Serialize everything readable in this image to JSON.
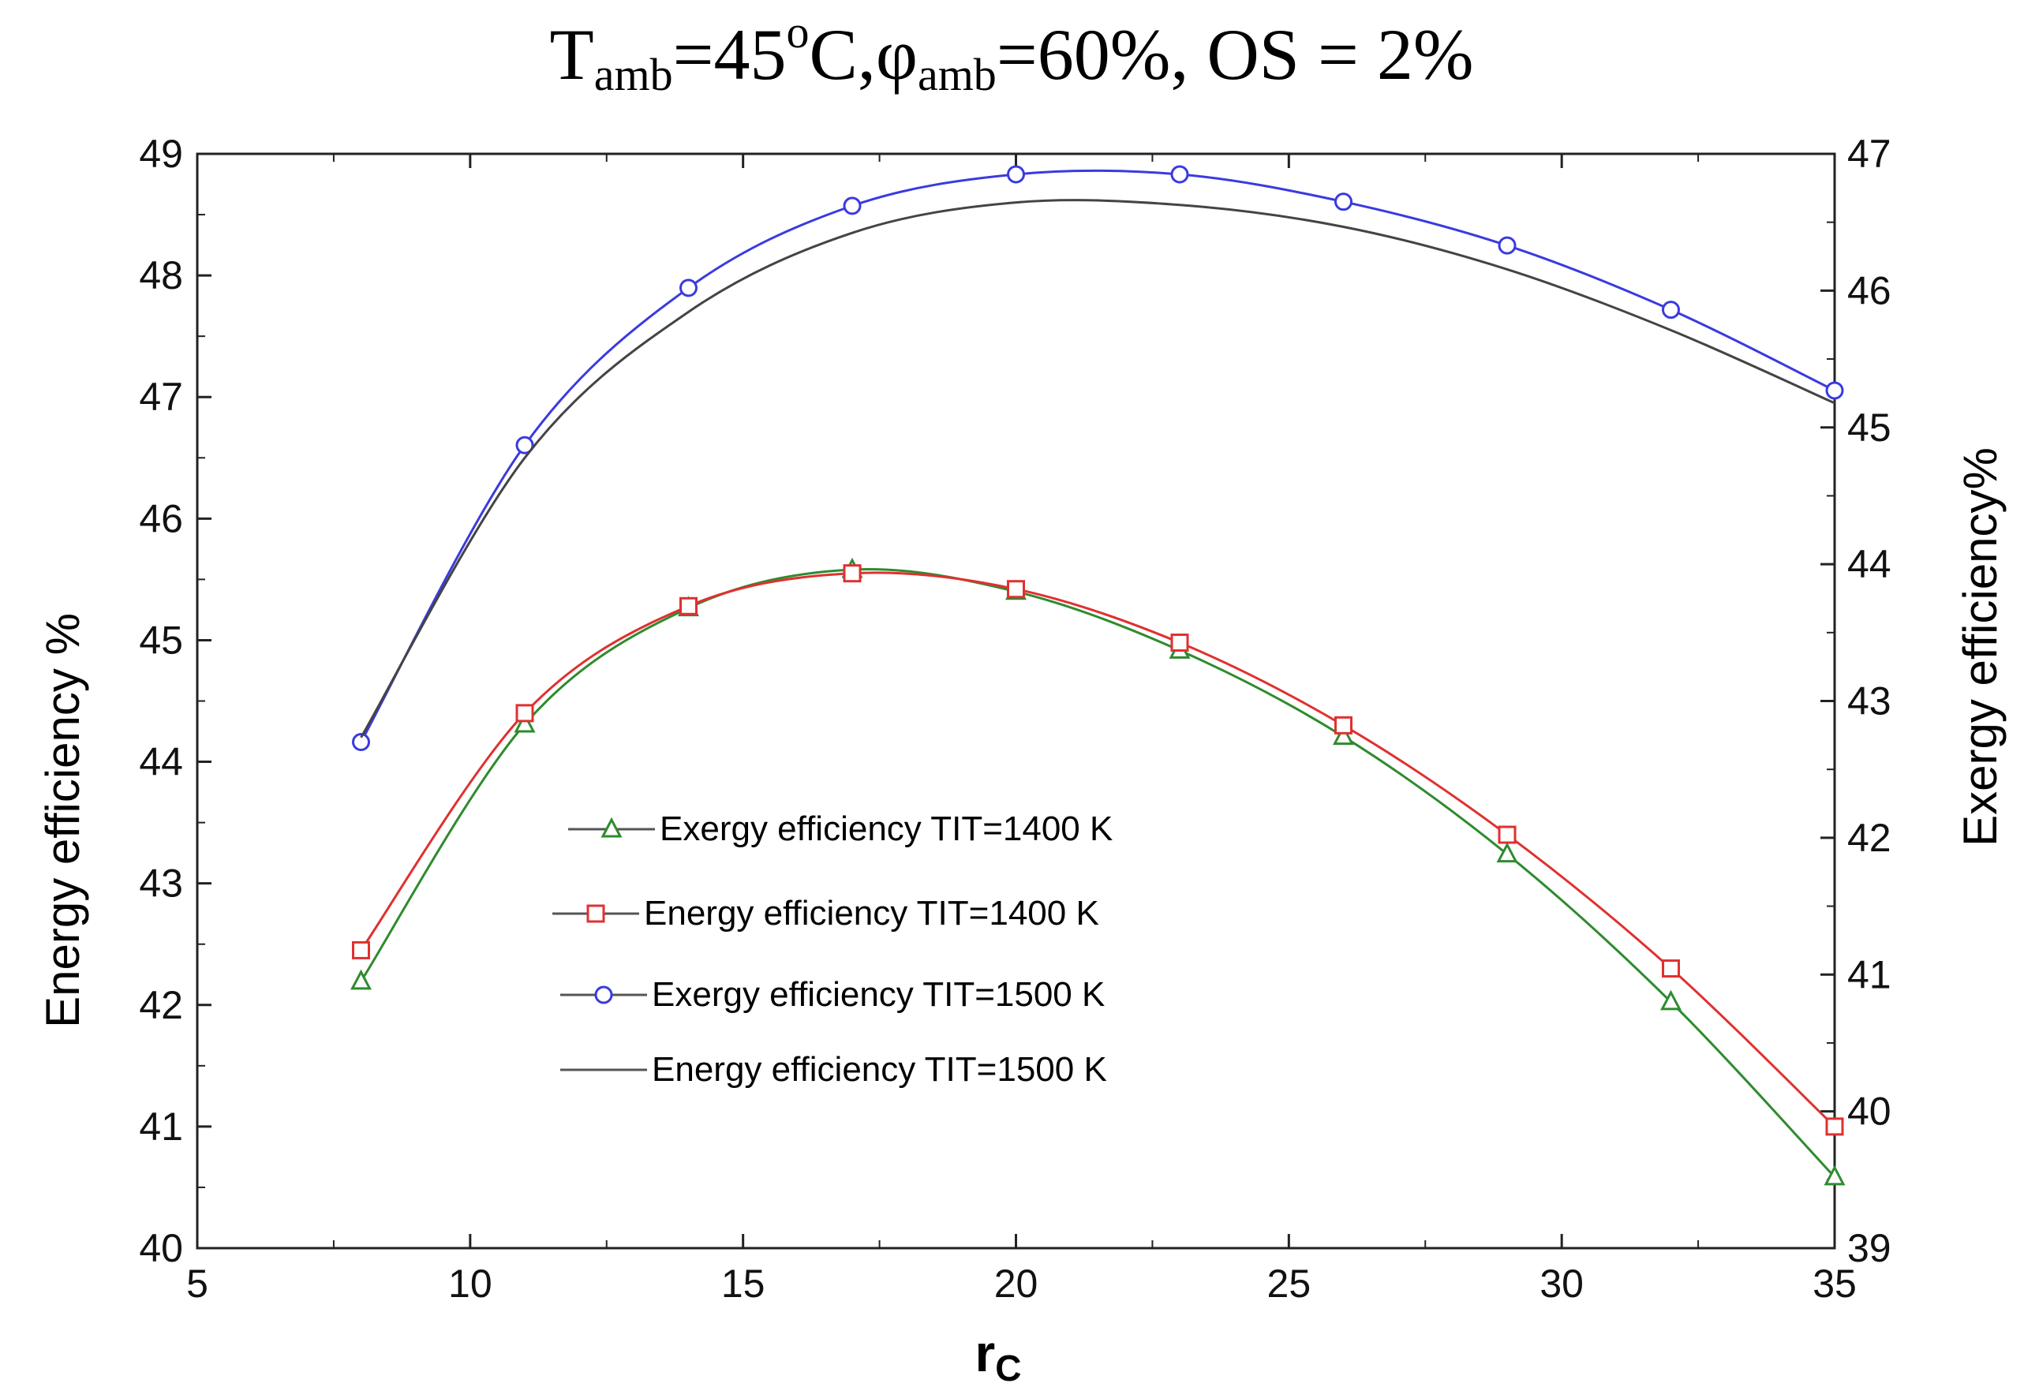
{
  "chart_data": {
    "type": "line",
    "title": {
      "parts": [
        {
          "text": "T",
          "style": "normal"
        },
        {
          "text": "amb",
          "style": "sub"
        },
        {
          "text": "=45",
          "style": "normal"
        },
        {
          "text": "o",
          "style": "sup"
        },
        {
          "text": "C,φ",
          "style": "normal"
        },
        {
          "text": "amb",
          "style": "sub"
        },
        {
          "text": "=60%, OS = 2%",
          "style": "normal"
        }
      ]
    },
    "xlabel": {
      "main": "r",
      "sub": "C"
    },
    "ylabel_left": "Energy efficiency %",
    "ylabel_right": "Exergy efficiency%",
    "xlim": [
      5,
      35
    ],
    "ylim_left": [
      40,
      49
    ],
    "ylim_right": [
      39,
      47
    ],
    "xticks": [
      5,
      10,
      15,
      20,
      25,
      30,
      35
    ],
    "yticks_left": [
      40,
      41,
      42,
      43,
      44,
      45,
      46,
      47,
      48,
      49
    ],
    "yticks_right": [
      39,
      40,
      41,
      42,
      43,
      44,
      45,
      46,
      47
    ],
    "grid": false,
    "legend_position": "lower-center",
    "series": [
      {
        "name": "Exergy efficiency TIT=1400 K",
        "axis": "right",
        "color": "#2e8b2e",
        "marker": "triangle",
        "x": [
          8,
          11,
          14,
          17,
          20,
          23,
          26,
          29,
          32,
          35
        ],
        "y": [
          40.95,
          42.83,
          43.68,
          43.96,
          43.8,
          43.37,
          42.74,
          41.88,
          40.8,
          39.52
        ]
      },
      {
        "name": "Energy efficiency TIT=1400 K",
        "axis": "left",
        "color": "#e03030",
        "marker": "square",
        "x": [
          8,
          11,
          14,
          17,
          20,
          23,
          26,
          29,
          32,
          35
        ],
        "y": [
          42.45,
          44.4,
          45.28,
          45.55,
          45.42,
          44.98,
          44.3,
          43.4,
          42.3,
          41.0
        ]
      },
      {
        "name": "Exergy efficiency TIT=1500 K",
        "axis": "right",
        "color": "#3a3ae0",
        "marker": "circle",
        "x": [
          8,
          11,
          14,
          17,
          20,
          23,
          26,
          29,
          32,
          35
        ],
        "y": [
          42.7,
          44.87,
          46.02,
          46.62,
          46.85,
          46.85,
          46.65,
          46.33,
          45.86,
          45.27
        ]
      },
      {
        "name": "Energy efficiency TIT=1500 K",
        "axis": "left",
        "color": "#444444",
        "marker": "none",
        "x": [
          8,
          11,
          14,
          17,
          20,
          23,
          26,
          29,
          32,
          35
        ],
        "y": [
          44.2,
          46.5,
          47.7,
          48.35,
          48.6,
          48.58,
          48.4,
          48.05,
          47.55,
          46.95
        ]
      }
    ]
  }
}
